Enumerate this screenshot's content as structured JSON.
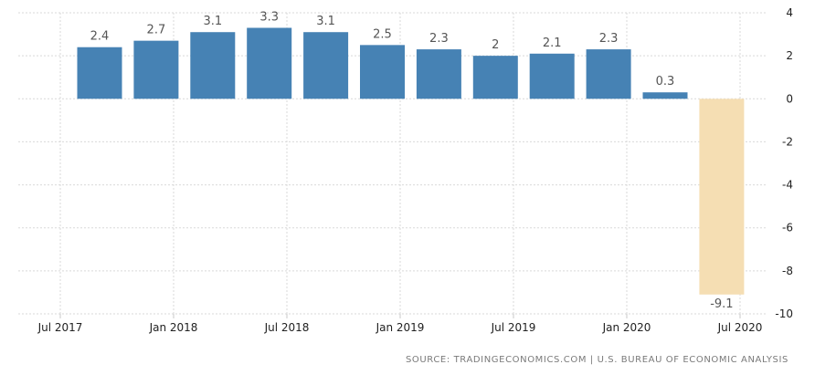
{
  "chart_data": {
    "type": "bar",
    "categories": [
      "Q3 2017",
      "Q4 2017",
      "Q1 2018",
      "Q2 2018",
      "Q3 2018",
      "Q4 2018",
      "Q1 2019",
      "Q2 2019",
      "Q3 2019",
      "Q4 2019",
      "Q1 2020",
      "Q2 2020"
    ],
    "values": [
      2.4,
      2.7,
      3.1,
      3.3,
      3.1,
      2.5,
      2.3,
      2,
      2.1,
      2.3,
      0.3,
      -9.1
    ],
    "data_labels": [
      "2.4",
      "2.7",
      "3.1",
      "3.3",
      "3.1",
      "2.5",
      "2.3",
      "2",
      "2.1",
      "2.3",
      "0.3",
      "-9.1"
    ],
    "x_ticks": [
      "Jul 2017",
      "Jan 2018",
      "Jul 2018",
      "Jan 2019",
      "Jul 2019",
      "Jan 2020",
      "Jul 2020"
    ],
    "y_ticks": [
      4,
      2,
      0,
      -2,
      -4,
      -6,
      -8,
      -10
    ],
    "ylim": [
      -10,
      4
    ],
    "y_axis_side": "right",
    "grid": true,
    "colors": {
      "bar": "#4682b4",
      "highlight_bar": "#f5deb3"
    },
    "highlight_index": 11
  },
  "source_text": "SOURCE: TRADINGECONOMICS.COM | U.S. BUREAU OF ECONOMIC ANALYSIS"
}
